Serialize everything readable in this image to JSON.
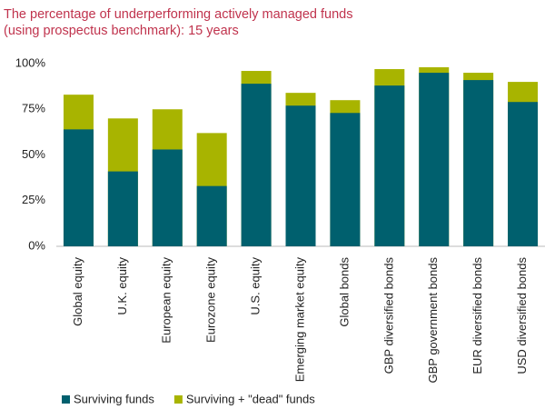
{
  "chart_data": {
    "type": "bar",
    "title": [
      "The percentage of underperforming actively managed funds",
      "(using prospectus benchmark): 15 years"
    ],
    "categories": [
      "Global equity",
      "U.K. equity",
      "European equity",
      "Eurozone equity",
      "U.S. equity",
      "Emerging market equity",
      "Global bonds",
      "GBP diversified bonds",
      "GBP government bonds",
      "EUR diversified bonds",
      "USD diversified bonds"
    ],
    "series": [
      {
        "name": "Surviving funds",
        "color": "#00606e",
        "values": [
          64,
          41,
          53,
          33,
          89,
          77,
          73,
          88,
          95,
          91,
          79
        ]
      },
      {
        "name": "Surviving + \"dead\" funds",
        "color": "#a8b400",
        "values": [
          83,
          70,
          75,
          62,
          96,
          84,
          80,
          97,
          98,
          95,
          90
        ]
      }
    ],
    "ylim": [
      0,
      100
    ],
    "yticks": [
      {
        "value": 0,
        "label": "0%"
      },
      {
        "value": 25,
        "label": "25%"
      },
      {
        "value": 50,
        "label": "50%"
      },
      {
        "value": 75,
        "label": "75%"
      },
      {
        "value": 100,
        "label": "100%"
      }
    ],
    "grid": false
  }
}
